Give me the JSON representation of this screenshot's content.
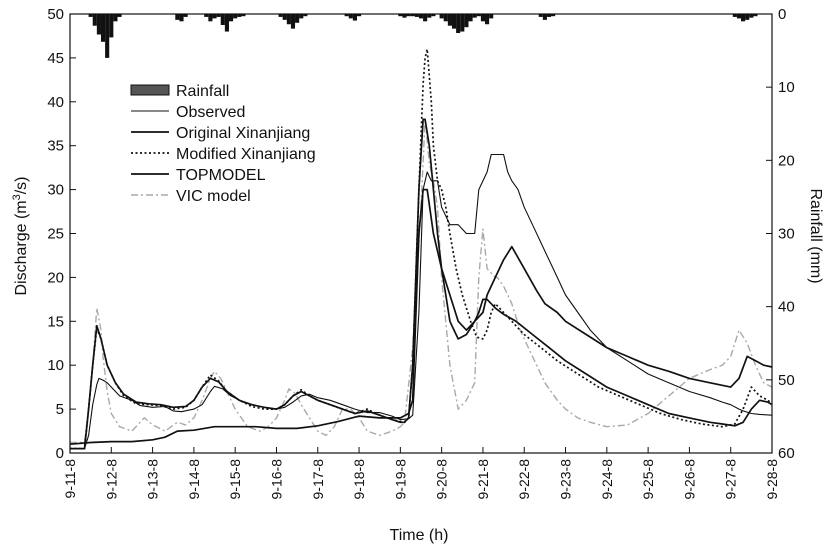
{
  "chart_data": {
    "type": "line",
    "xlabel": "Time (h)",
    "ylabel_left": "Discharge (m³/s)",
    "ylabel_left_parts": {
      "pre": "Discharge (m",
      "sup": "3",
      "post": "/s)"
    },
    "ylabel_right": "Rainfall (mm)",
    "x_ticks": [
      "9-11-8",
      "9-12-8",
      "9-13-8",
      "9-14-8",
      "9-15-8",
      "9-16-8",
      "9-17-8",
      "9-18-8",
      "9-19-8",
      "9-20-8",
      "9-21-8",
      "9-22-8",
      "9-23-8",
      "9-24-8",
      "9-25-8",
      "9-26-8",
      "9-27-8",
      "9-28-8"
    ],
    "xlim": [
      0,
      17
    ],
    "ylim_left": [
      0,
      50
    ],
    "ylim_right": [
      60,
      0
    ],
    "left_ticks": [
      0,
      5,
      10,
      15,
      20,
      25,
      30,
      35,
      40,
      45,
      50
    ],
    "right_ticks": [
      0,
      10,
      20,
      30,
      40,
      50,
      60
    ],
    "legend": {
      "placement": "upper-left",
      "items": [
        {
          "label": "Rainfall",
          "kind": "bar"
        },
        {
          "label": "Observed",
          "kind": "thin"
        },
        {
          "label": "Original Xinanjiang",
          "kind": "solid"
        },
        {
          "label": "Modified Xinanjiang",
          "kind": "dotted"
        },
        {
          "label": "TOPMODEL",
          "kind": "solid"
        },
        {
          "label": "VIC model",
          "kind": "dashdot"
        }
      ]
    },
    "rainfall": {
      "name": "Rainfall",
      "color": "#111111",
      "x": [
        0.5,
        0.6,
        0.7,
        0.8,
        0.9,
        1.0,
        1.1,
        1.2,
        2.6,
        2.7,
        2.8,
        3.3,
        3.4,
        3.5,
        3.6,
        3.7,
        3.8,
        3.9,
        4.0,
        4.1,
        4.2,
        5.1,
        5.2,
        5.3,
        5.4,
        5.5,
        5.6,
        5.7,
        6.7,
        6.8,
        6.9,
        7.0,
        8.0,
        8.1,
        8.2,
        8.3,
        8.4,
        8.5,
        8.6,
        8.7,
        8.8,
        9.0,
        9.1,
        9.2,
        9.3,
        9.4,
        9.5,
        9.6,
        9.7,
        9.8,
        9.9,
        10.0,
        10.1,
        10.2,
        11.4,
        11.5,
        11.6,
        11.7,
        16.1,
        16.2,
        16.3,
        16.4,
        16.5,
        16.6
      ],
      "values": [
        0.4,
        1.6,
        2.8,
        3.8,
        6.0,
        3.2,
        1.0,
        0.4,
        0.8,
        1.0,
        0.4,
        0.4,
        1.0,
        0.6,
        0.4,
        1.5,
        2.4,
        1.0,
        0.6,
        0.4,
        0.3,
        0.4,
        0.8,
        1.4,
        2.0,
        1.2,
        0.6,
        0.3,
        0.3,
        0.6,
        0.9,
        0.3,
        0.3,
        0.5,
        0.3,
        0.3,
        0.4,
        0.6,
        1.0,
        0.5,
        0.3,
        0.6,
        1.0,
        1.6,
        2.0,
        2.6,
        2.4,
        1.8,
        1.0,
        0.5,
        0.3,
        1.0,
        1.4,
        0.6,
        0.4,
        0.8,
        0.4,
        0.3,
        0.4,
        0.6,
        1.0,
        0.8,
        0.5,
        0.3
      ]
    },
    "series": [
      {
        "name": "VIC model",
        "style": "dashdot",
        "color": "#a9a9a9",
        "x": [
          0,
          0.35,
          0.45,
          0.55,
          0.65,
          0.75,
          0.8,
          0.9,
          1.0,
          1.2,
          1.5,
          1.8,
          2.0,
          2.3,
          2.6,
          2.8,
          3.0,
          3.2,
          3.4,
          3.5,
          3.65,
          3.8,
          4.0,
          4.3,
          4.6,
          4.8,
          5.0,
          5.2,
          5.3,
          5.45,
          5.6,
          5.8,
          6.0,
          6.2,
          6.4,
          6.6,
          6.8,
          7.0,
          7.2,
          7.5,
          7.8,
          8.0,
          8.1,
          8.3,
          8.5,
          8.6,
          8.7,
          8.8,
          8.9,
          9.0,
          9.2,
          9.4,
          9.6,
          9.8,
          9.9,
          10.0,
          10.1,
          10.2,
          10.3,
          10.35,
          10.5,
          10.7,
          10.9,
          11.2,
          11.5,
          11.8,
          12.0,
          12.3,
          12.6,
          13.0,
          13.5,
          14.0,
          14.5,
          15.0,
          15.5,
          15.8,
          16.0,
          16.2,
          16.4,
          16.6,
          16.8,
          17.0
        ],
        "y": [
          1.2,
          1.2,
          5,
          10,
          16.5,
          14,
          11,
          7,
          4.5,
          3,
          2.5,
          4,
          3.2,
          2.5,
          3.5,
          3.2,
          4,
          6,
          8.5,
          9.3,
          8.5,
          7,
          5,
          3,
          2.5,
          3,
          4,
          6,
          7.3,
          6.8,
          5.5,
          4,
          2.5,
          2,
          3,
          5,
          5,
          4,
          2.5,
          2,
          2.5,
          3,
          3.5,
          12,
          28,
          38,
          33,
          31,
          28,
          20,
          10,
          5,
          6,
          8,
          20,
          25.5,
          21,
          20.5,
          20,
          20,
          19,
          17,
          14,
          11,
          8,
          6,
          5,
          4,
          3.5,
          3,
          3.2,
          4.5,
          6.5,
          8.5,
          9.5,
          10,
          11,
          14,
          12.5,
          10,
          8,
          7.5
        ]
      },
      {
        "name": "Modified Xinanjiang",
        "style": "dotted",
        "color": "#111111",
        "x": [
          0,
          0.35,
          0.45,
          0.55,
          0.65,
          0.75,
          0.9,
          1.1,
          1.3,
          1.6,
          1.9,
          2.2,
          2.5,
          2.8,
          3.0,
          3.2,
          3.4,
          3.6,
          3.8,
          4.1,
          4.4,
          4.7,
          5.0,
          5.2,
          5.4,
          5.6,
          5.8,
          6.0,
          6.3,
          6.6,
          6.9,
          7.2,
          7.5,
          7.8,
          8.0,
          8.1,
          8.2,
          8.3,
          8.45,
          8.55,
          8.6,
          8.65,
          8.75,
          8.8,
          8.9,
          9.0,
          9.1,
          9.2,
          9.35,
          9.5,
          9.7,
          9.85,
          10.0,
          10.1,
          10.2,
          10.3,
          10.4,
          10.5,
          10.7,
          11.0,
          11.4,
          11.8,
          12.3,
          12.8,
          13.3,
          13.8,
          14.3,
          14.8,
          15.3,
          15.8,
          16.1,
          16.3,
          16.5,
          16.7,
          16.9,
          17.0
        ],
        "y": [
          0.5,
          0.5,
          5,
          10,
          14.2,
          13,
          10,
          8,
          6.5,
          5.6,
          5.5,
          5.4,
          5,
          5.2,
          6,
          7.5,
          8.9,
          8.2,
          7,
          6,
          5.3,
          5,
          5,
          5.5,
          6.5,
          7.2,
          6.5,
          6,
          5.5,
          5,
          4.5,
          5,
          4.3,
          3.8,
          3.6,
          3.5,
          4,
          10,
          30,
          42,
          45,
          46,
          40,
          35,
          31,
          30,
          28,
          25,
          21,
          18,
          15,
          13.2,
          13,
          14,
          16,
          17,
          16.5,
          16,
          15,
          13.5,
          12,
          10.5,
          9,
          7.5,
          6.5,
          5.5,
          4.5,
          3.8,
          3.3,
          3.0,
          3.3,
          5,
          7.5,
          6.5,
          6,
          5.6
        ]
      },
      {
        "name": "Original Xinanjiang",
        "style": "solid",
        "color": "#111111",
        "x": [
          0,
          0.35,
          0.45,
          0.55,
          0.65,
          0.75,
          0.9,
          1.1,
          1.3,
          1.6,
          1.9,
          2.2,
          2.5,
          2.8,
          3.0,
          3.2,
          3.4,
          3.6,
          3.8,
          4.1,
          4.4,
          4.7,
          5.0,
          5.2,
          5.4,
          5.6,
          5.8,
          6.0,
          6.3,
          6.6,
          6.9,
          7.2,
          7.5,
          7.8,
          8.0,
          8.1,
          8.2,
          8.3,
          8.45,
          8.55,
          8.6,
          8.7,
          8.8,
          8.9,
          9.0,
          9.1,
          9.2,
          9.3,
          9.4,
          9.6,
          9.8,
          9.9,
          10.0,
          10.1,
          10.2,
          10.3,
          10.5,
          10.8,
          11.2,
          11.6,
          12.0,
          12.5,
          13.0,
          13.5,
          14.0,
          14.5,
          15.0,
          15.5,
          15.8,
          16.1,
          16.3,
          16.5,
          16.7,
          16.9,
          17.0
        ],
        "y": [
          0.5,
          0.5,
          5,
          10,
          14.5,
          13,
          10,
          8,
          6.7,
          5.8,
          5.6,
          5.5,
          5.2,
          5.3,
          6,
          7.5,
          8.5,
          8.1,
          7,
          6,
          5.5,
          5.2,
          5,
          5.5,
          6.5,
          7,
          6.5,
          6,
          5.5,
          5,
          4.5,
          4.8,
          4.3,
          3.8,
          3.5,
          3.5,
          4,
          10,
          30,
          38,
          38,
          35,
          30,
          25,
          21,
          18,
          15,
          14,
          13,
          13.5,
          15,
          16,
          17.5,
          17.5,
          17,
          16.5,
          15.8,
          15,
          13.5,
          12,
          10.5,
          9,
          7.5,
          6.5,
          5.5,
          4.5,
          4,
          3.5,
          3.3,
          3.1,
          3.5,
          5,
          6,
          5.8,
          5.5
        ]
      },
      {
        "name": "Observed",
        "style": "thin",
        "color": "#111111",
        "x": [
          0,
          0.35,
          0.45,
          0.55,
          0.65,
          0.7,
          0.8,
          0.9,
          1.0,
          1.2,
          1.5,
          1.7,
          2.0,
          2.3,
          2.5,
          2.7,
          3.0,
          3.2,
          3.4,
          3.5,
          3.7,
          3.9,
          4.2,
          4.6,
          5.0,
          5.2,
          5.4,
          5.6,
          5.8,
          6.0,
          6.3,
          6.6,
          6.9,
          7.2,
          7.5,
          7.8,
          8.0,
          8.2,
          8.3,
          8.45,
          8.55,
          8.65,
          8.75,
          8.8,
          8.9,
          9.0,
          9.2,
          9.4,
          9.6,
          9.8,
          9.9,
          10.1,
          10.2,
          10.3,
          10.5,
          10.6,
          10.7,
          10.85,
          11.0,
          11.2,
          11.5,
          11.8,
          12.0,
          12.3,
          12.6,
          13.0,
          13.5,
          14.0,
          14.5,
          15.0,
          15.5,
          15.8,
          16.0,
          16.2,
          16.3,
          16.5,
          16.7,
          17.0
        ],
        "y": [
          0.5,
          0.5,
          2,
          5.5,
          7.8,
          8.5,
          8.3,
          8,
          7.5,
          6.5,
          6,
          5.4,
          5.2,
          5.3,
          4.8,
          4.7,
          5,
          5.5,
          7,
          7.6,
          7.3,
          6.5,
          5.8,
          5.3,
          5,
          5.2,
          5.8,
          6.5,
          6.7,
          6.3,
          6,
          5.5,
          5,
          4.6,
          4.6,
          4.2,
          3.8,
          3.9,
          4.3,
          16,
          30,
          32,
          31,
          31,
          31,
          28,
          26,
          26,
          25,
          25,
          30,
          32,
          34,
          34,
          34,
          32,
          31,
          30,
          28,
          26,
          23,
          20,
          18,
          16,
          14,
          12,
          10.5,
          9,
          8,
          7,
          6.3,
          5.8,
          5.5,
          5,
          4.8,
          4.5,
          4.4,
          4.3
        ]
      },
      {
        "name": "TOPMODEL",
        "style": "solid",
        "color": "#111111",
        "x": [
          0,
          0.5,
          1.0,
          1.5,
          2.0,
          2.3,
          2.6,
          3.0,
          3.5,
          4.0,
          4.5,
          5.0,
          5.5,
          6.0,
          6.5,
          7.0,
          7.5,
          8.0,
          8.2,
          8.3,
          8.45,
          8.55,
          8.65,
          8.8,
          9.0,
          9.2,
          9.4,
          9.6,
          9.8,
          10.0,
          10.1,
          10.3,
          10.5,
          10.7,
          11.0,
          11.3,
          11.5,
          11.8,
          12.0,
          12.5,
          13.0,
          13.5,
          14.0,
          14.5,
          15.0,
          15.5,
          16.0,
          16.2,
          16.4,
          16.6,
          16.8,
          17.0
        ],
        "y": [
          1.0,
          1.2,
          1.3,
          1.3,
          1.5,
          1.8,
          2.5,
          2.6,
          3,
          3.0,
          3.0,
          2.8,
          2.8,
          3.1,
          3.6,
          4.2,
          4.0,
          4.0,
          4.5,
          6,
          25,
          30,
          30,
          25,
          21,
          18,
          15,
          14,
          15,
          16,
          18,
          20,
          22,
          23.5,
          21,
          18.5,
          17,
          16,
          15,
          13.5,
          12,
          11,
          10,
          9.3,
          8.5,
          8,
          7.5,
          8.5,
          11,
          10.5,
          10,
          9.8
        ]
      }
    ]
  }
}
